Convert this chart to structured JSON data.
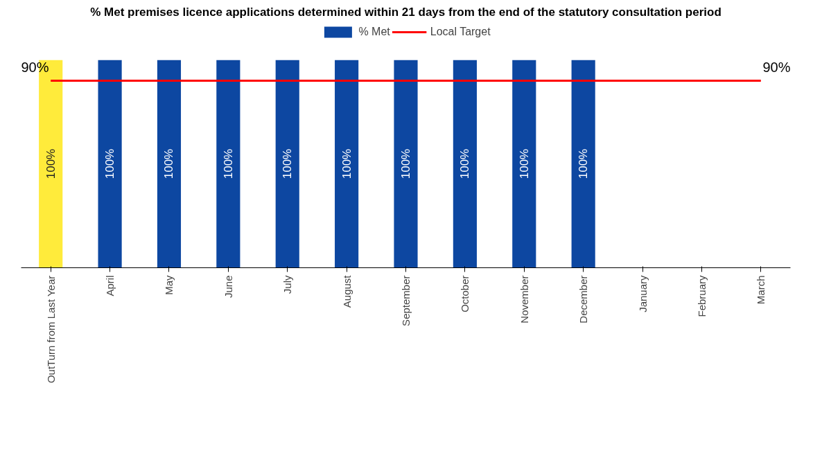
{
  "chart_data": {
    "type": "bar",
    "title": "% Met premises licence applications determined within 21 days from the end of the statutory consultation period",
    "categories": [
      "OutTurn from Last Year",
      "April",
      "May",
      "June",
      "July",
      "August",
      "September",
      "October",
      "November",
      "December",
      "January",
      "February",
      "March"
    ],
    "ylim": [
      0,
      100
    ],
    "tick_labels": "x",
    "grid": false,
    "legend": "top",
    "series": [
      {
        "name": "% Met",
        "color": "#0d47a1",
        "colors": [
          "#ffeb3b",
          "#0d47a1",
          "#0d47a1",
          "#0d47a1",
          "#0d47a1",
          "#0d47a1",
          "#0d47a1",
          "#0d47a1",
          "#0d47a1",
          "#0d47a1",
          "#0d47a1",
          "#0d47a1",
          "#0d47a1"
        ],
        "values": [
          100,
          100,
          100,
          100,
          100,
          100,
          100,
          100,
          100,
          100,
          null,
          null,
          null
        ],
        "value_labels": [
          "100%",
          "100%",
          "100%",
          "100%",
          "100%",
          "100%",
          "100%",
          "100%",
          "100%",
          "100%",
          null,
          null,
          null
        ]
      },
      {
        "name": "Local Target",
        "type": "line",
        "color": "#ff0000",
        "values": [
          90,
          90,
          90,
          90,
          90,
          90,
          90,
          90,
          90,
          90,
          90,
          90,
          90
        ],
        "value_labels": [
          "90%",
          null,
          null,
          null,
          null,
          null,
          null,
          null,
          null,
          null,
          null,
          null,
          "90%"
        ]
      }
    ]
  }
}
